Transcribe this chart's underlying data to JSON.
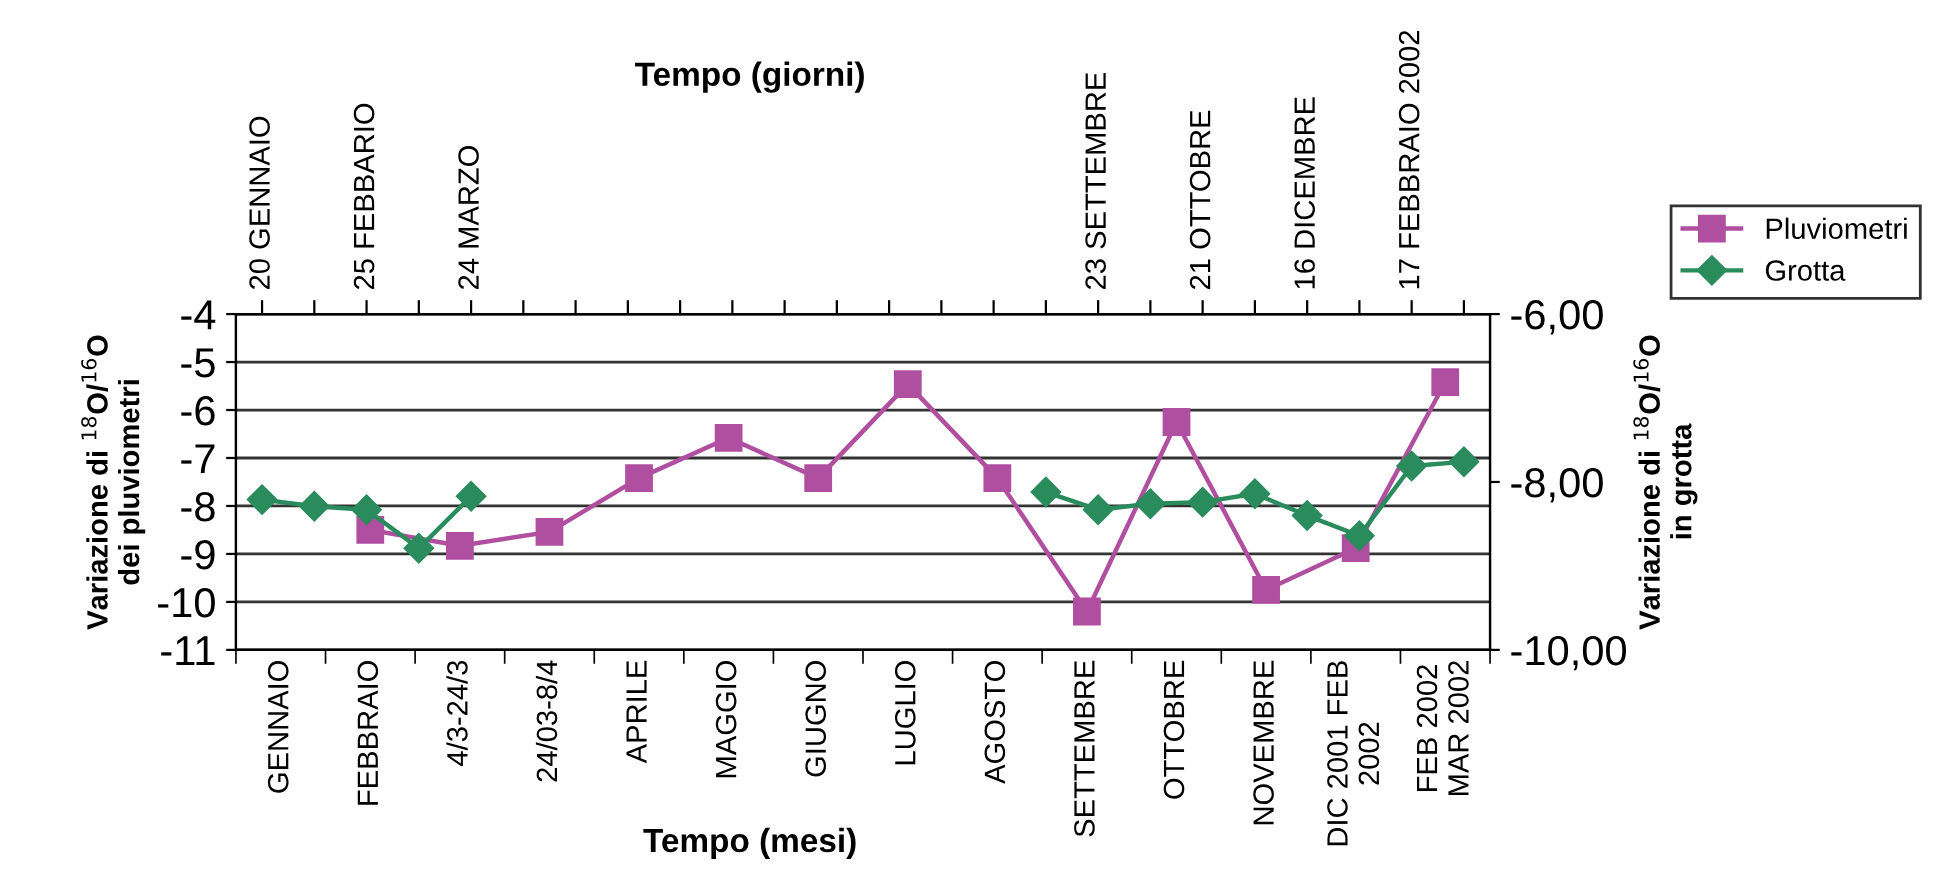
{
  "chart_data": [
    {
      "type": "line",
      "xlabel": "Tempo (mesi)",
      "ylabel": "Variazione di $^{18}$O/$^{16}$O\ndei pluviometri",
      "categories": [
        "GENNAIO",
        "FEBBRAIO",
        "4/3-24/3",
        "24/03-8/4",
        "APRILE",
        "MAGGIO",
        "GIUGNO",
        "LUGLIO",
        "AGOSTO",
        "SETTEMBRE",
        "OTTOBRE",
        "NOVEMBRE",
        "DIC 2001 FEB\n2002",
        "FEB 2002\nMAR 2002"
      ],
      "ylim": [
        -11,
        -4
      ],
      "yticks": [
        -11,
        -10,
        -9,
        -8,
        -7,
        -6,
        -5,
        -4
      ],
      "grid": "y",
      "legend": "top right",
      "series": [
        {
          "name": "Pluviometri",
          "color": "#b04fa0",
          "marker": "square",
          "values": [
            null,
            -8.5,
            -8.83,
            -8.54,
            -7.42,
            -6.58,
            -7.42,
            -5.46,
            -7.42,
            -10.2,
            -6.25,
            -9.75,
            -8.88,
            -5.42
          ]
        }
      ]
    },
    {
      "type": "line",
      "xlabel": "Tempo (giorni)",
      "ylabel": "Variazione di $^{18}$O/$^{16}$O\nin grotta",
      "categories": [
        "20 GENNAIO",
        null,
        "25 FEBBARIO",
        null,
        "24 MARZO",
        null,
        null,
        null,
        null,
        null,
        null,
        null,
        null,
        null,
        null,
        null,
        "23 SETTEMBRE",
        null,
        "21 OTTOBRE",
        null,
        "16 DICEMBRE",
        null,
        "17 FEBBRAIO 2002",
        null
      ],
      "ylim": [
        -10,
        -6
      ],
      "yticks": [
        {
          "value": -10,
          "label": "-10,00"
        },
        {
          "value": -8,
          "label": "-8,00"
        },
        {
          "value": -6,
          "label": "-6,00"
        }
      ],
      "legend": "top right",
      "series": [
        {
          "name": "Grotta",
          "color": "#2a8c5c",
          "marker": "diamond",
          "values": [
            -8.21,
            -8.29,
            -8.33,
            -8.79,
            -8.17,
            null,
            null,
            null,
            null,
            null,
            null,
            null,
            null,
            null,
            null,
            -8.12,
            -8.33,
            -8.26,
            -8.24,
            -8.14,
            -8.4,
            -8.64,
            -7.81,
            -7.76
          ]
        }
      ]
    }
  ]
}
